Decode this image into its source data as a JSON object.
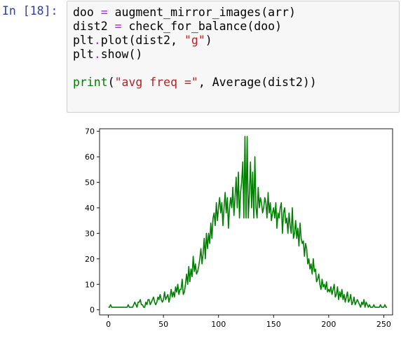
{
  "cell": {
    "prompt": "In [18]:",
    "lines": [
      [
        {
          "t": "doo ",
          "c": ""
        },
        {
          "t": "=",
          "c": "op"
        },
        {
          "t": " augment_mirror_images(arr)",
          "c": ""
        }
      ],
      [
        {
          "t": "dist2 ",
          "c": ""
        },
        {
          "t": "=",
          "c": "op"
        },
        {
          "t": " check_for_balance(doo)",
          "c": ""
        }
      ],
      [
        {
          "t": "plt",
          "c": ""
        },
        {
          "t": ".",
          "c": "op"
        },
        {
          "t": "plot(dist2, ",
          "c": ""
        },
        {
          "t": "\"g\"",
          "c": "str"
        },
        {
          "t": ")",
          "c": ""
        }
      ],
      [
        {
          "t": "plt",
          "c": ""
        },
        {
          "t": ".",
          "c": "op"
        },
        {
          "t": "show()",
          "c": ""
        }
      ],
      [],
      [
        {
          "t": "print",
          "c": "builtin"
        },
        {
          "t": "(",
          "c": ""
        },
        {
          "t": "\"avg freq =\"",
          "c": "str"
        },
        {
          "t": ", Average(dist2))",
          "c": ""
        }
      ]
    ]
  },
  "chart_data": {
    "type": "line",
    "series": [
      {
        "color": "#008000",
        "x_start": 0,
        "values": [
          1,
          1,
          2,
          1,
          1,
          1,
          1,
          1,
          1,
          1,
          1,
          1,
          1,
          1,
          1,
          1,
          1,
          1,
          2,
          1,
          1,
          1,
          1,
          2,
          3,
          2,
          1,
          3,
          3,
          4,
          2,
          2,
          1,
          1,
          3,
          2,
          4,
          4,
          2,
          3,
          4,
          5,
          3,
          2,
          3,
          5,
          4,
          6,
          4,
          3,
          4,
          7,
          4,
          5,
          6,
          3,
          5,
          8,
          5,
          7,
          5,
          9,
          7,
          10,
          6,
          8,
          8,
          12,
          6,
          7,
          10,
          14,
          10,
          17,
          11,
          16,
          13,
          21,
          15,
          18,
          14,
          15,
          17,
          20,
          24,
          18,
          22,
          28,
          20,
          30,
          24,
          30,
          26,
          34,
          28,
          36,
          38,
          33,
          42,
          35,
          40,
          44,
          38,
          42,
          33,
          40,
          46,
          38,
          44,
          32,
          40,
          44,
          40,
          48,
          37,
          44,
          52,
          40,
          54,
          36,
          46,
          50,
          58,
          36,
          68,
          36,
          68,
          36,
          45,
          58,
          40,
          54,
          36,
          60,
          40,
          36,
          48,
          40,
          44,
          42,
          38,
          40,
          44,
          42,
          36,
          46,
          38,
          42,
          35,
          38,
          40,
          36,
          42,
          32,
          38,
          36,
          40,
          42,
          30,
          38,
          40,
          34,
          36,
          30,
          38,
          33,
          30,
          40,
          28,
          30,
          35,
          28,
          32,
          25,
          34,
          28,
          26,
          27,
          21,
          26,
          24,
          18,
          20,
          16,
          18,
          14,
          20,
          15,
          16,
          11,
          12,
          14,
          10,
          8,
          12,
          9,
          10,
          8,
          11,
          7,
          8,
          7,
          9,
          6,
          8,
          10,
          5,
          6,
          9,
          4,
          7,
          5,
          8,
          4,
          6,
          3,
          5,
          7,
          3,
          4,
          6,
          2,
          3,
          5,
          2,
          3,
          4,
          3,
          2,
          1,
          3,
          2,
          4,
          1,
          3,
          2,
          1,
          2,
          1,
          1,
          1,
          2,
          1,
          1,
          1,
          1,
          1,
          2,
          1,
          1,
          1,
          2,
          1,
          1
        ]
      }
    ],
    "xlim": [
      -8,
      258
    ],
    "ylim": [
      -2,
      71
    ],
    "xticks": [
      0,
      50,
      100,
      150,
      200,
      250
    ],
    "yticks": [
      0,
      10,
      20,
      30,
      40,
      50,
      60,
      70
    ],
    "grid": false
  }
}
